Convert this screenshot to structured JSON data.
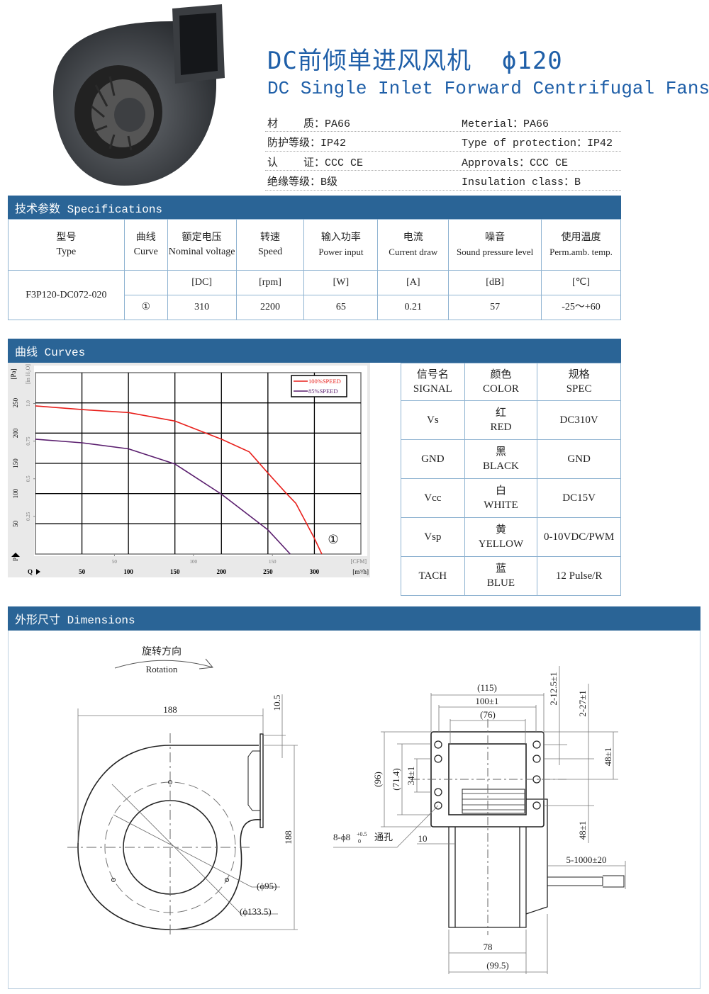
{
  "header": {
    "title": "DC前倾单进风风机  ϕ120",
    "subtitle": "DC Single Inlet Forward Centrifugal Fans",
    "properties": [
      {
        "cn": "材    质：PA66",
        "en": "Meterial：PA66"
      },
      {
        "cn": "防护等级：IP42",
        "en": "Type of protection：IP42"
      },
      {
        "cn": "认    证：CCC CE",
        "en": "Approvals：CCC CE"
      },
      {
        "cn": "绝缘等级：B级",
        "en": "Insulation class：B"
      }
    ]
  },
  "specs": {
    "heading": "技术参数 Specifications",
    "columns": [
      {
        "cn": "型号",
        "en": "Type"
      },
      {
        "cn": "曲线",
        "en": "Curve"
      },
      {
        "cn": "额定电压",
        "en": "Nominal voltage"
      },
      {
        "cn": "转速",
        "en": "Speed"
      },
      {
        "cn": "输入功率",
        "en": "Power input"
      },
      {
        "cn": "电流",
        "en": "Current draw"
      },
      {
        "cn": "噪音",
        "en": "Sound pressure level"
      },
      {
        "cn": "使用温度",
        "en": "Perm.amb. temp."
      }
    ],
    "units": [
      "[DC]",
      "[rpm]",
      "[W]",
      "[A]",
      "[dB]",
      "[℃]"
    ],
    "model": "F3P120-DC072-020",
    "row": {
      "curve": "①",
      "voltage": "310",
      "speed": "2200",
      "power": "65",
      "current": "0.21",
      "noise": "57",
      "temp": "-25～+60"
    }
  },
  "curves": {
    "heading": "曲线 Curves",
    "signal_table": {
      "headers": [
        {
          "cn": "信号名",
          "en": "SIGNAL"
        },
        {
          "cn": "颜色",
          "en": "COLOR"
        },
        {
          "cn": "规格",
          "en": "SPEC"
        }
      ],
      "rows": [
        {
          "signal": "Vs",
          "color_cn": "红",
          "color_en": "RED",
          "spec": "DC310V"
        },
        {
          "signal": "GND",
          "color_cn": "黑",
          "color_en": "BLACK",
          "spec": "GND"
        },
        {
          "signal": "Vcc",
          "color_cn": "白",
          "color_en": "WHITE",
          "spec": "DC15V"
        },
        {
          "signal": "Vsp",
          "color_cn": "黄",
          "color_en": "YELLOW",
          "spec": "0-10VDC/PWM"
        },
        {
          "signal": "TACH",
          "color_cn": "蓝",
          "color_en": "BLUE",
          "spec": "12 Pulse/R"
        }
      ]
    }
  },
  "chart_data": {
    "type": "line",
    "title": "",
    "xlabel": "Q",
    "xunit": "[m³/h]",
    "ylabel": "P",
    "yunit": "[Pa]",
    "xlim": [
      0,
      350
    ],
    "ylim": [
      0,
      300
    ],
    "xticks": [
      50,
      100,
      150,
      200,
      250,
      300
    ],
    "yticks": [
      50,
      100,
      150,
      200,
      250
    ],
    "secondary_x": {
      "unit": "[CFM]",
      "ticks": [
        50,
        100,
        150
      ],
      "factor_m3h_per_cfm": 1.699
    },
    "secondary_y": {
      "unit": "[in H₂O]",
      "ticks": [
        "0.25",
        "0.5",
        "0.75",
        "1.0"
      ],
      "values": [
        0.25,
        0.5,
        0.75,
        1.0
      ],
      "factor_pa_per_inh2o": 249
    },
    "grid": true,
    "legend": "top-right",
    "annotation": "①",
    "series": [
      {
        "name": "100%SPEED",
        "color": "#e8201c",
        "x": [
          0,
          50,
          100,
          150,
          200,
          230,
          250,
          270,
          280,
          300,
          308
        ],
        "y": [
          245,
          239,
          234,
          220,
          190,
          169,
          134,
          100,
          84,
          26,
          0
        ]
      },
      {
        "name": "85%SPEED",
        "color": "#5a1e6e",
        "x": [
          0,
          50,
          100,
          150,
          200,
          250,
          274
        ],
        "y": [
          190,
          184,
          174,
          149,
          99,
          40,
          0
        ]
      }
    ]
  },
  "dimensions": {
    "heading": "外形尺寸 Dimensions",
    "rotation_cn": "旋转方向",
    "rotation_en": "Rotation",
    "side": {
      "width": "188",
      "height": "188",
      "flange": "10.5",
      "d_inner": "(ϕ95)",
      "d_outer": "(ϕ133.5)"
    },
    "front": {
      "w115": "(115)",
      "w100": "100±1",
      "w76": "(76)",
      "h96": "(96)",
      "h71": "(71.4)",
      "h34": "34±1",
      "p125": "2-12.5±1",
      "p27": "2-27±1",
      "h48a": "48±1",
      "h48b": "48±1",
      "holes": "8-ϕ8",
      "tol_up": "+0.5",
      "tol_dn": "0",
      "holes_cn": "通孔",
      "d10": "10",
      "cable": "5-1000±20",
      "w78": "78",
      "w995": "(99.5)"
    }
  }
}
